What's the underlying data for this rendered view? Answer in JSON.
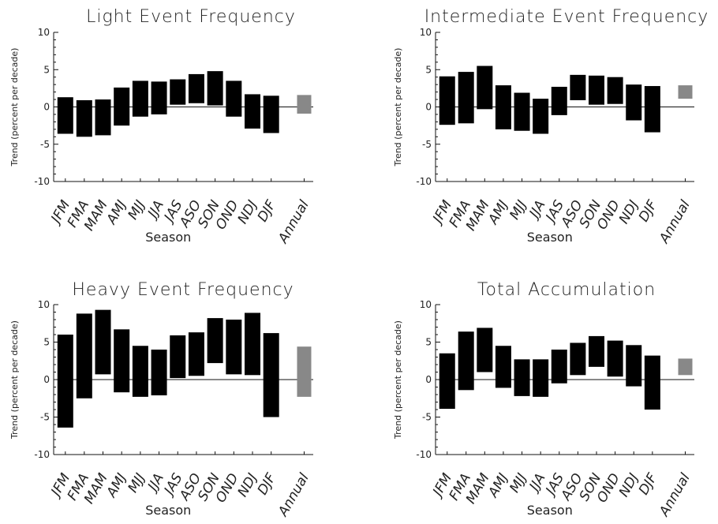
{
  "chart_data": [
    {
      "type": "bar",
      "subtype": "floating-range",
      "title": "Light Event Frequency",
      "ylabel": "Trend (percent per decade)",
      "xlabel": "Season",
      "ylim": [
        -10,
        10
      ],
      "yticks": [
        -10,
        -5,
        0,
        5,
        10
      ],
      "categories": [
        "JFM",
        "FMA",
        "MAM",
        "AMJ",
        "MJJ",
        "JJA",
        "JAS",
        "ASO",
        "SON",
        "OND",
        "NDJ",
        "DJF",
        "Annual"
      ],
      "ranges": [
        [
          -3.6,
          1.3
        ],
        [
          -4.0,
          0.9
        ],
        [
          -3.8,
          1.0
        ],
        [
          -2.5,
          2.6
        ],
        [
          -1.3,
          3.5
        ],
        [
          -1.0,
          3.4
        ],
        [
          0.3,
          3.7
        ],
        [
          0.5,
          4.4
        ],
        [
          0.2,
          4.8
        ],
        [
          -1.3,
          3.5
        ],
        [
          -2.9,
          1.7
        ],
        [
          -3.5,
          1.5
        ],
        [
          -0.9,
          1.6
        ]
      ],
      "annual_color": "#888888",
      "bar_color": "#000000"
    },
    {
      "type": "bar",
      "subtype": "floating-range",
      "title": "Intermediate Event Frequency",
      "ylabel": "Trend (percent per decade)",
      "xlabel": "Season",
      "ylim": [
        -10,
        10
      ],
      "yticks": [
        -10,
        -5,
        0,
        5,
        10
      ],
      "categories": [
        "JFM",
        "FMA",
        "MAM",
        "AMJ",
        "MJJ",
        "JJA",
        "JAS",
        "ASO",
        "SON",
        "OND",
        "NDJ",
        "DJF",
        "Annual"
      ],
      "ranges": [
        [
          -2.4,
          4.1
        ],
        [
          -2.2,
          4.7
        ],
        [
          -0.3,
          5.5
        ],
        [
          -3.0,
          2.9
        ],
        [
          -3.2,
          1.9
        ],
        [
          -3.6,
          1.1
        ],
        [
          -1.1,
          2.7
        ],
        [
          0.9,
          4.3
        ],
        [
          0.3,
          4.2
        ],
        [
          0.4,
          4.0
        ],
        [
          -1.8,
          3.0
        ],
        [
          -3.4,
          2.8
        ],
        [
          1.1,
          2.9
        ]
      ],
      "annual_color": "#888888",
      "bar_color": "#000000"
    },
    {
      "type": "bar",
      "subtype": "floating-range",
      "title": "Heavy Event Frequency",
      "ylabel": "Trend (percent per decade)",
      "xlabel": "Season",
      "ylim": [
        -10,
        10
      ],
      "yticks": [
        -10,
        -5,
        0,
        5,
        10
      ],
      "categories": [
        "JFM",
        "FMA",
        "MAM",
        "AMJ",
        "MJJ",
        "JJA",
        "JAS",
        "ASO",
        "SON",
        "OND",
        "NDJ",
        "DJF",
        "Annual"
      ],
      "ranges": [
        [
          -6.4,
          6.0
        ],
        [
          -2.5,
          8.8
        ],
        [
          0.7,
          9.3
        ],
        [
          -1.7,
          6.7
        ],
        [
          -2.3,
          4.5
        ],
        [
          -2.1,
          4.0
        ],
        [
          0.2,
          5.9
        ],
        [
          0.5,
          6.3
        ],
        [
          2.2,
          8.2
        ],
        [
          0.7,
          8.0
        ],
        [
          0.6,
          8.9
        ],
        [
          -5.0,
          6.2
        ],
        [
          -2.3,
          4.4
        ]
      ],
      "annual_color": "#888888",
      "bar_color": "#000000"
    },
    {
      "type": "bar",
      "subtype": "floating-range",
      "title": "Total Accumulation",
      "ylabel": "Trend (percent per decade)",
      "xlabel": "Season",
      "ylim": [
        -10,
        10
      ],
      "yticks": [
        -10,
        -5,
        0,
        5,
        10
      ],
      "categories": [
        "JFM",
        "FMA",
        "MAM",
        "AMJ",
        "MJJ",
        "JJA",
        "JAS",
        "ASO",
        "SON",
        "OND",
        "NDJ",
        "DJF",
        "Annual"
      ],
      "ranges": [
        [
          -3.9,
          3.5
        ],
        [
          -1.4,
          6.4
        ],
        [
          1.0,
          6.9
        ],
        [
          -1.1,
          4.5
        ],
        [
          -2.2,
          2.7
        ],
        [
          -2.3,
          2.7
        ],
        [
          -0.5,
          4.0
        ],
        [
          0.6,
          4.9
        ],
        [
          1.7,
          5.8
        ],
        [
          0.4,
          5.2
        ],
        [
          -0.9,
          4.6
        ],
        [
          -4.0,
          3.2
        ],
        [
          0.6,
          2.8
        ]
      ],
      "annual_color": "#888888",
      "bar_color": "#000000"
    }
  ]
}
